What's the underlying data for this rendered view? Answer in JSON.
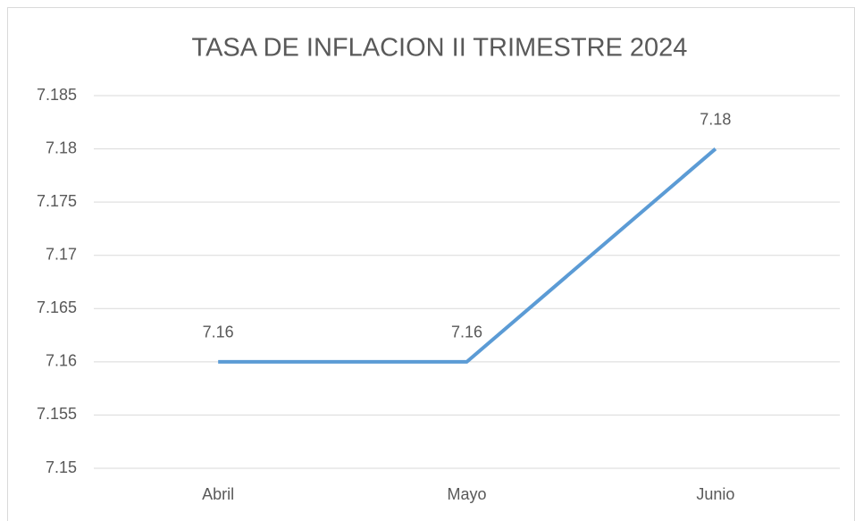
{
  "chart_data": {
    "type": "line",
    "title": "TASA DE INFLACION II TRIMESTRE 2024",
    "categories": [
      "Abril",
      "Mayo",
      "Junio"
    ],
    "values": [
      7.16,
      7.16,
      7.18
    ],
    "color": "#5b9bd5",
    "ylim": [
      7.15,
      7.185
    ],
    "yticks": [
      7.15,
      7.155,
      7.16,
      7.165,
      7.17,
      7.175,
      7.18,
      7.185
    ],
    "grid": true
  }
}
